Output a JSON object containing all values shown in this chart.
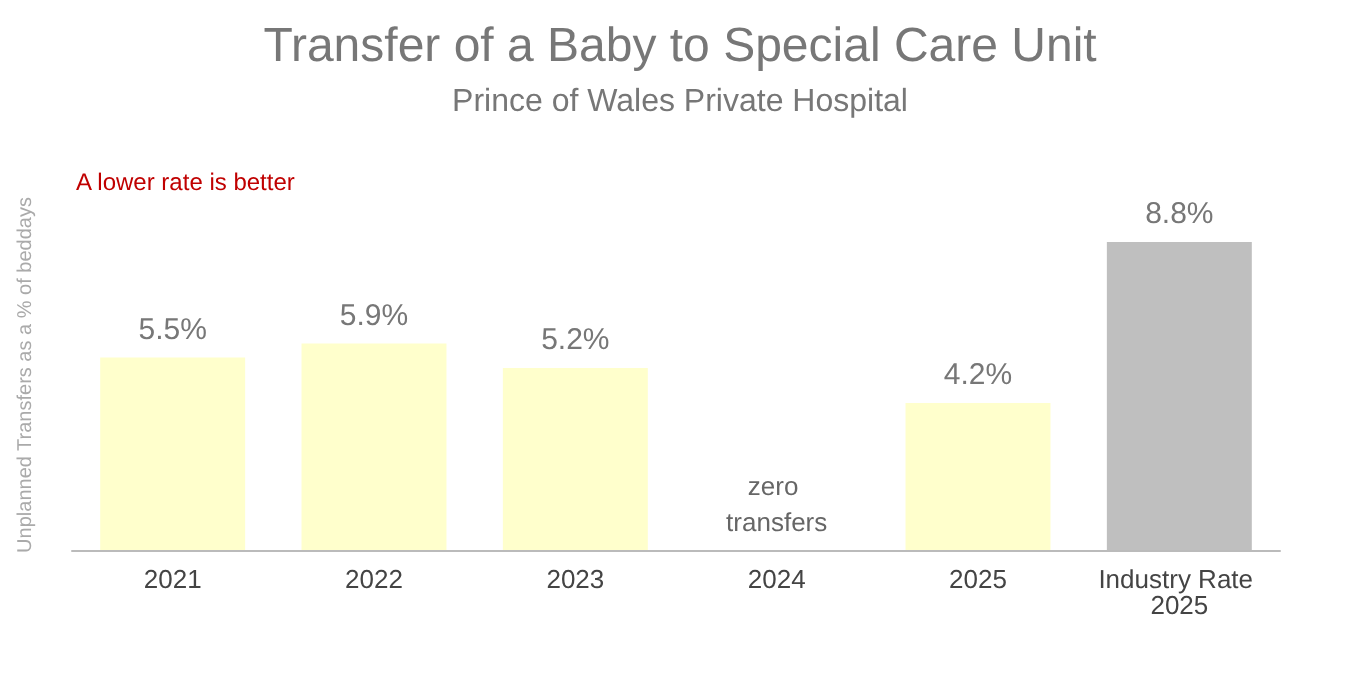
{
  "chart_data": {
    "type": "bar",
    "title": "Transfer of a Baby to Special Care Unit",
    "subtitle": "Prince of Wales Private Hospital",
    "ylabel": "Unplanned Transfers as a % of beddays",
    "categories": [
      "2021",
      "2022",
      "2023",
      "2024",
      "2025",
      "Industry Rate 2025"
    ],
    "values": [
      5.5,
      5.9,
      5.2,
      0,
      4.2,
      8.8
    ],
    "colors": [
      "#ffffcc",
      "#ffffcc",
      "#ffffcc",
      "#ffffcc",
      "#ffffcc",
      "#bfbfbf"
    ],
    "value_labels": [
      "5.5%",
      "5.9%",
      "5.2%",
      "zero transfers",
      "4.2%",
      "8.8%"
    ],
    "annotations": [
      "A lower rate is better"
    ],
    "grid": false
  }
}
